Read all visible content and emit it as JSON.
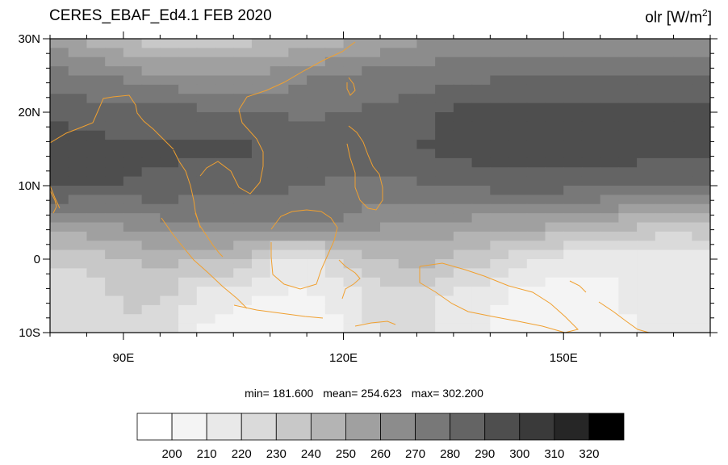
{
  "title": {
    "left": "CERES_EBAF_Ed4.1 FEB 2020",
    "right_var": "olr",
    "right_unit_base": "[W/m",
    "right_unit_sup": "2",
    "right_unit_close": "]"
  },
  "stats": {
    "min": "min= 181.600",
    "mean": "mean= 254.623",
    "max": "max= 302.200"
  },
  "colors": {
    "coastline": "#f0a030",
    "frame": "#000000"
  },
  "chart_data": {
    "type": "heatmap",
    "variable": "olr",
    "units": "W/m2",
    "xlim": [
      80,
      170
    ],
    "ylim": [
      -10,
      30
    ],
    "x_ticks": [
      {
        "value": 90,
        "label": "90E"
      },
      {
        "value": 120,
        "label": "120E"
      },
      {
        "value": 150,
        "label": "150E"
      }
    ],
    "y_ticks": [
      {
        "value": 30,
        "label": "30N"
      },
      {
        "value": 20,
        "label": "20N"
      },
      {
        "value": 10,
        "label": "10N"
      },
      {
        "value": 0,
        "label": "0"
      },
      {
        "value": -10,
        "label": "10S"
      }
    ],
    "colorbar": {
      "levels": [
        "200",
        "210",
        "220",
        "230",
        "240",
        "250",
        "260",
        "270",
        "280",
        "290",
        "300",
        "310",
        "320"
      ],
      "colors": [
        "#ffffff",
        "#f4f4f4",
        "#e9e9e9",
        "#dadada",
        "#c8c8c8",
        "#b4b4b4",
        "#a0a0a0",
        "#8c8c8c",
        "#787878",
        "#646464",
        "#4e4e4e",
        "#3a3a3a",
        "#262626",
        "#000000"
      ]
    },
    "field_rows": [
      {
        "lat": 30,
        "values": [
          260,
          245,
          238,
          232,
          232,
          232,
          240,
          242,
          248,
          252,
          258,
          262,
          260,
          262,
          262,
          262,
          262,
          262,
          262
        ]
      },
      {
        "lat": 25,
        "values": [
          272,
          272,
          268,
          262,
          262,
          262,
          262,
          268,
          272,
          275,
          275,
          278,
          278,
          278,
          278,
          278,
          278,
          278,
          278
        ]
      },
      {
        "lat": 20,
        "values": [
          285,
          285,
          285,
          285,
          282,
          282,
          280,
          278,
          280,
          282,
          285,
          292,
          294,
          294,
          294,
          294,
          294,
          294,
          294
        ]
      },
      {
        "lat": 15,
        "values": [
          300,
          294,
          292,
          292,
          292,
          292,
          290,
          288,
          290,
          290,
          290,
          294,
          296,
          296,
          296,
          296,
          294,
          294,
          292
        ]
      },
      {
        "lat": 10,
        "values": [
          295,
          290,
          290,
          288,
          284,
          282,
          282,
          280,
          278,
          278,
          278,
          280,
          284,
          284,
          284,
          284,
          282,
          282,
          280
        ]
      },
      {
        "lat": 5,
        "values": [
          258,
          258,
          262,
          268,
          270,
          272,
          272,
          272,
          268,
          262,
          258,
          258,
          256,
          256,
          252,
          248,
          244,
          240,
          238
        ]
      },
      {
        "lat": 0,
        "values": [
          232,
          234,
          240,
          242,
          242,
          240,
          222,
          212,
          232,
          240,
          244,
          238,
          232,
          220,
          216,
          212,
          210,
          212,
          218
        ]
      },
      {
        "lat": -5,
        "values": [
          222,
          224,
          232,
          232,
          218,
          212,
          210,
          208,
          212,
          226,
          228,
          218,
          212,
          205,
          205,
          208,
          212,
          215,
          218
        ]
      },
      {
        "lat": -10,
        "values": [
          220,
          222,
          228,
          226,
          210,
          205,
          205,
          205,
          210,
          222,
          222,
          212,
          210,
          205,
          205,
          206,
          210,
          212,
          216
        ]
      }
    ]
  },
  "coastlines": [
    {
      "name": "india",
      "points": [
        [
          62,
          177
        ],
        [
          82,
          165
        ],
        [
          100,
          158
        ],
        [
          115,
          152
        ],
        [
          122,
          136
        ],
        [
          128,
          122
        ],
        [
          140,
          120
        ],
        [
          160,
          118
        ],
        [
          168,
          130
        ],
        [
          170,
          140
        ],
        [
          178,
          150
        ],
        [
          190,
          160
        ],
        [
          205,
          175
        ],
        [
          215,
          185
        ]
      ]
    },
    {
      "name": "india-south",
      "points": [
        [
          62,
          178
        ],
        [
          62,
          230
        ],
        [
          68,
          245
        ],
        [
          74,
          258
        ]
      ]
    },
    {
      "name": "sri-lanka",
      "points": [
        [
          60,
          232
        ],
        [
          64,
          240
        ],
        [
          68,
          248
        ],
        [
          70,
          256
        ],
        [
          66,
          264
        ]
      ]
    },
    {
      "name": "burma-coast",
      "points": [
        [
          215,
          186
        ],
        [
          222,
          200
        ],
        [
          230,
          212
        ],
        [
          236,
          230
        ],
        [
          240,
          248
        ],
        [
          242,
          262
        ],
        [
          248,
          282
        ]
      ]
    },
    {
      "name": "indochina",
      "points": [
        [
          248,
          218
        ],
        [
          256,
          208
        ],
        [
          270,
          200
        ],
        [
          286,
          212
        ],
        [
          296,
          232
        ],
        [
          310,
          240
        ],
        [
          322,
          226
        ],
        [
          326,
          206
        ],
        [
          326,
          188
        ],
        [
          318,
          172
        ],
        [
          300,
          152
        ],
        [
          296,
          136
        ],
        [
          306,
          120
        ],
        [
          330,
          112
        ],
        [
          352,
          102
        ],
        [
          376,
          88
        ],
        [
          402,
          74
        ],
        [
          424,
          64
        ],
        [
          440,
          52
        ]
      ]
    },
    {
      "name": "malay-peninsula",
      "points": [
        [
          242,
          264
        ],
        [
          248,
          280
        ],
        [
          256,
          292
        ],
        [
          264,
          304
        ],
        [
          272,
          314
        ],
        [
          276,
          318
        ]
      ]
    },
    {
      "name": "sumatra",
      "points": [
        [
          200,
          270
        ],
        [
          214,
          290
        ],
        [
          226,
          305
        ],
        [
          240,
          322
        ],
        [
          258,
          338
        ],
        [
          276,
          355
        ],
        [
          294,
          370
        ],
        [
          306,
          382
        ]
      ]
    },
    {
      "name": "java",
      "points": [
        [
          290,
          378
        ],
        [
          318,
          384
        ],
        [
          348,
          388
        ],
        [
          378,
          392
        ],
        [
          400,
          394
        ]
      ]
    },
    {
      "name": "borneo",
      "points": [
        [
          336,
          284
        ],
        [
          348,
          268
        ],
        [
          362,
          262
        ],
        [
          380,
          260
        ],
        [
          398,
          262
        ],
        [
          410,
          270
        ],
        [
          418,
          282
        ],
        [
          414,
          298
        ],
        [
          406,
          316
        ],
        [
          398,
          334
        ],
        [
          392,
          352
        ],
        [
          372,
          358
        ],
        [
          352,
          352
        ],
        [
          338,
          340
        ],
        [
          336,
          318
        ],
        [
          336,
          300
        ]
      ]
    },
    {
      "name": "sulawesi",
      "points": [
        [
          420,
          322
        ],
        [
          428,
          330
        ],
        [
          440,
          338
        ],
        [
          446,
          345
        ],
        [
          438,
          352
        ],
        [
          428,
          358
        ],
        [
          424,
          370
        ]
      ]
    },
    {
      "name": "philippines",
      "points": [
        [
          432,
          156
        ],
        [
          442,
          164
        ],
        [
          450,
          176
        ],
        [
          456,
          192
        ],
        [
          462,
          206
        ],
        [
          470,
          216
        ],
        [
          474,
          232
        ],
        [
          474,
          248
        ],
        [
          466,
          260
        ],
        [
          456,
          258
        ],
        [
          446,
          248
        ],
        [
          440,
          232
        ],
        [
          440,
          214
        ],
        [
          434,
          196
        ],
        [
          430,
          178
        ]
      ]
    },
    {
      "name": "taiwan",
      "points": [
        [
          432,
          96
        ],
        [
          438,
          104
        ],
        [
          440,
          112
        ],
        [
          434,
          118
        ],
        [
          430,
          110
        ],
        [
          430,
          102
        ]
      ]
    },
    {
      "name": "new-guinea",
      "points": [
        [
          520,
          330
        ],
        [
          548,
          326
        ],
        [
          576,
          334
        ],
        [
          600,
          342
        ],
        [
          630,
          354
        ],
        [
          660,
          362
        ],
        [
          682,
          376
        ],
        [
          700,
          392
        ],
        [
          716,
          408
        ],
        [
          700,
          412
        ],
        [
          672,
          404
        ],
        [
          642,
          398
        ],
        [
          610,
          392
        ],
        [
          580,
          386
        ],
        [
          560,
          376
        ],
        [
          540,
          362
        ],
        [
          520,
          350
        ],
        [
          520,
          330
        ]
      ]
    },
    {
      "name": "timor",
      "points": [
        [
          440,
          404
        ],
        [
          460,
          400
        ],
        [
          480,
          398
        ],
        [
          490,
          402
        ]
      ]
    },
    {
      "name": "solomon",
      "points": [
        [
          742,
          374
        ],
        [
          760,
          386
        ],
        [
          776,
          398
        ],
        [
          790,
          408
        ],
        [
          804,
          412
        ]
      ]
    },
    {
      "name": "new-britain",
      "points": [
        [
          706,
          348
        ],
        [
          718,
          354
        ],
        [
          726,
          362
        ]
      ]
    }
  ]
}
